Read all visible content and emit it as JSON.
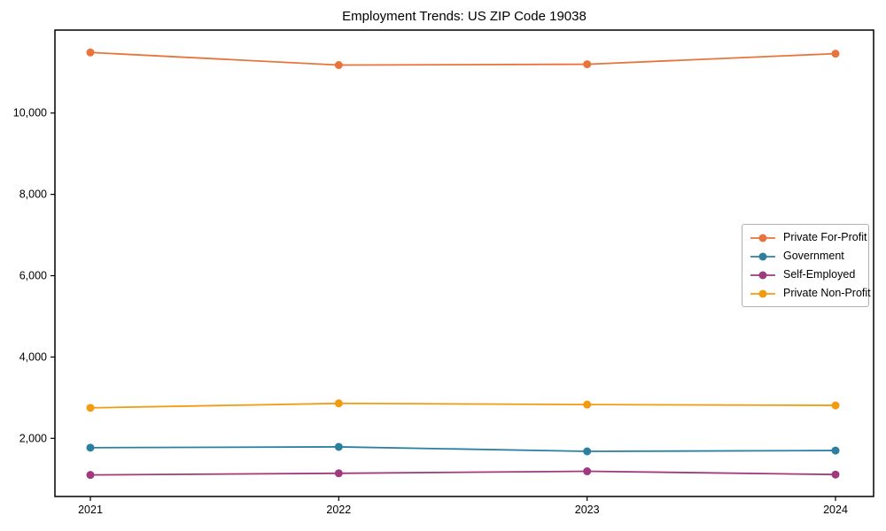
{
  "figure": {
    "background": "#ffffff",
    "text_color": "#000000",
    "spine_color": "#000000",
    "legend_border_color": "#b0b0b0"
  },
  "chart_data": {
    "type": "line",
    "title": "Employment Trends: US ZIP Code 19038",
    "xlabel": "",
    "ylabel": "",
    "categories": [
      "2021",
      "2022",
      "2023",
      "2024"
    ],
    "series": [
      {
        "name": "Private For-Profit",
        "color": "#e8743b",
        "values": [
          11490,
          11180,
          11200,
          11460
        ]
      },
      {
        "name": "Government",
        "color": "#2b80a0",
        "values": [
          1770,
          1790,
          1680,
          1700
        ]
      },
      {
        "name": "Self-Employed",
        "color": "#9e3a7d",
        "values": [
          1100,
          1140,
          1190,
          1110
        ]
      },
      {
        "name": "Private Non-Profit",
        "color": "#f39b0e",
        "values": [
          2750,
          2860,
          2830,
          2810
        ]
      }
    ],
    "ylim": [
      570,
      12040
    ],
    "yticks": [
      2000,
      4000,
      6000,
      8000,
      10000
    ],
    "ytick_labels": [
      "2,000",
      "4,000",
      "6,000",
      "8,000",
      "10,000"
    ],
    "grid": false,
    "legend_position": "center-right",
    "marker": "circle"
  }
}
